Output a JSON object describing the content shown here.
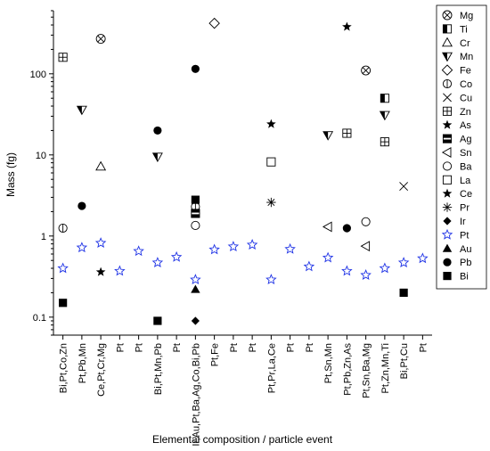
{
  "chart_data": {
    "type": "scatter",
    "title": "",
    "xlabel": "Elemental composition / particle event",
    "ylabel": "Mass (fg)",
    "yscale": "log",
    "ylim": [
      0.06,
      600
    ],
    "yticks": [
      0.1,
      1,
      10,
      100
    ],
    "ytick_labels": [
      "0.1",
      "1",
      "10",
      "100"
    ],
    "grid": false,
    "legend_position": "right",
    "categories": [
      "Bi,Pt,Co,Zn",
      "Pt,Pb,Mn",
      "Ce,Pt,Cr,Mg",
      "Pt",
      "Pt",
      "Bi,Pt,Mn,Pb",
      "Pt",
      "Ir,Au,Pt,Ba,Ag,Co,Bi,Pb",
      "Pt,Fe",
      "Pt",
      "Pt",
      "Pt,Pr,La,Ce",
      "Pt",
      "Pt",
      "Pt,Sn,Mn",
      "Pt,Pb,Zn,As",
      "Pt,Sn,Ba,Mg",
      "Pt,Zn,Mn,Ti",
      "Bi,Pt,Cu",
      "Pt"
    ],
    "series": [
      {
        "name": "Mg",
        "marker": "circle-x",
        "points": [
          [
            2,
            270
          ],
          [
            16,
            110
          ]
        ]
      },
      {
        "name": "Ti",
        "marker": "square-half",
        "points": [
          [
            17,
            50
          ]
        ]
      },
      {
        "name": "Cr",
        "marker": "triangle-open",
        "points": [
          [
            2,
            7.2
          ]
        ]
      },
      {
        "name": "Mn",
        "marker": "triangle-down-half",
        "points": [
          [
            1,
            36
          ],
          [
            5,
            9.5
          ],
          [
            14,
            17.5
          ],
          [
            17,
            31
          ]
        ]
      },
      {
        "name": "Fe",
        "marker": "diamond-open",
        "points": [
          [
            8,
            420
          ]
        ]
      },
      {
        "name": "Co",
        "marker": "circle-bar",
        "points": [
          [
            0,
            1.25
          ],
          [
            7,
            2.3
          ]
        ]
      },
      {
        "name": "Cu",
        "marker": "x",
        "points": [
          [
            18,
            4.1
          ]
        ]
      },
      {
        "name": "Zn",
        "marker": "square-plus",
        "points": [
          [
            0,
            160
          ],
          [
            15,
            18.5
          ],
          [
            17,
            14.5
          ]
        ]
      },
      {
        "name": "As",
        "marker": "star-solid",
        "points": [
          [
            15,
            380
          ]
        ]
      },
      {
        "name": "Ag",
        "marker": "square-striped",
        "points": [
          [
            7,
            1.9
          ]
        ]
      },
      {
        "name": "Sn",
        "marker": "triangle-left-open",
        "points": [
          [
            14,
            1.3
          ],
          [
            16,
            0.75
          ]
        ]
      },
      {
        "name": "Ba",
        "marker": "circle-open",
        "points": [
          [
            7,
            1.35
          ],
          [
            16,
            1.5
          ]
        ]
      },
      {
        "name": "La",
        "marker": "square-open",
        "points": [
          [
            11,
            8.2
          ]
        ]
      },
      {
        "name": "Ce",
        "marker": "star-solid",
        "points": [
          [
            2,
            0.36
          ],
          [
            11,
            24
          ]
        ]
      },
      {
        "name": "Pr",
        "marker": "asterisk",
        "points": [
          [
            11,
            2.6
          ]
        ]
      },
      {
        "name": "Ir",
        "marker": "diamond-solid",
        "points": [
          [
            7,
            0.09
          ]
        ]
      },
      {
        "name": "Pt",
        "marker": "star-open",
        "points": [
          [
            0,
            0.4
          ],
          [
            1,
            0.72
          ],
          [
            2,
            0.82
          ],
          [
            3,
            0.37
          ],
          [
            4,
            0.65
          ],
          [
            5,
            0.47
          ],
          [
            6,
            0.55
          ],
          [
            7,
            0.29
          ],
          [
            8,
            0.68
          ],
          [
            9,
            0.74
          ],
          [
            10,
            0.78
          ],
          [
            11,
            0.29
          ],
          [
            12,
            0.69
          ],
          [
            13,
            0.42
          ],
          [
            14,
            0.54
          ],
          [
            15,
            0.37
          ],
          [
            16,
            0.33
          ],
          [
            17,
            0.4
          ],
          [
            18,
            0.47
          ],
          [
            19,
            0.53
          ]
        ]
      },
      {
        "name": "Au",
        "marker": "triangle-solid",
        "points": [
          [
            7,
            0.22
          ]
        ]
      },
      {
        "name": "Pb",
        "marker": "circle-solid",
        "points": [
          [
            1,
            2.35
          ],
          [
            5,
            20
          ],
          [
            7,
            115
          ],
          [
            15,
            1.25
          ]
        ]
      },
      {
        "name": "Bi",
        "marker": "square-solid",
        "points": [
          [
            0,
            0.15
          ],
          [
            5,
            0.09
          ],
          [
            7,
            2.8
          ],
          [
            18,
            0.2
          ]
        ]
      }
    ]
  }
}
